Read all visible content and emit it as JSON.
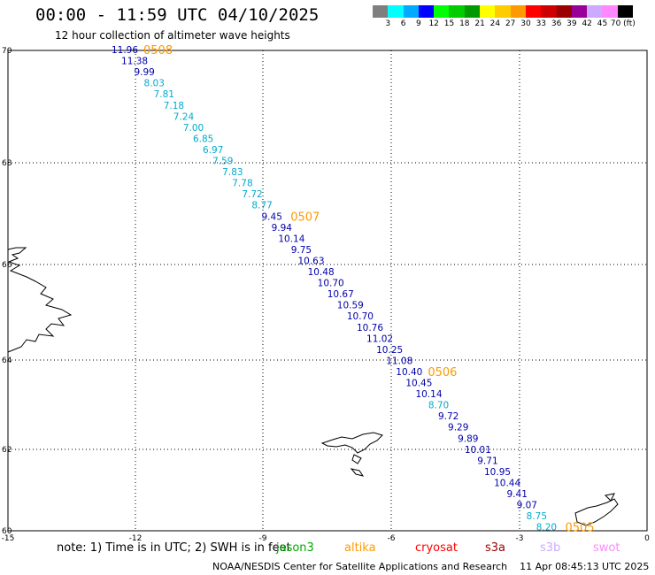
{
  "header": {
    "title": "00:00 - 11:59 UTC 04/10/2025",
    "subtitle": "12 hour collection of altimeter wave heights"
  },
  "legend": {
    "colors": [
      "#7f7f7f",
      "#00ffff",
      "#00aaff",
      "#0000ff",
      "#00ff00",
      "#00cc00",
      "#009900",
      "#ffff00",
      "#ffcc00",
      "#ff9900",
      "#ff0000",
      "#cc0000",
      "#990000",
      "#990099",
      "#ccaaff",
      "#ff88ff",
      "#000000"
    ],
    "labels": [
      "3",
      "6",
      "9",
      "12",
      "15",
      "18",
      "21",
      "24",
      "27",
      "30",
      "33",
      "36",
      "39",
      "42",
      "45",
      "70 (ft)"
    ]
  },
  "axes": {
    "x_ticks": [
      "-15",
      "-12",
      "-9",
      "-6",
      "-3",
      "0"
    ],
    "y_ticks": [
      "70",
      "68",
      "66",
      "64",
      "62",
      "60"
    ]
  },
  "track": {
    "points": [
      {
        "v": "11.96",
        "c": "#0000aa"
      },
      {
        "v": "11.38",
        "c": "#0000aa"
      },
      {
        "v": "9.99",
        "c": "#0000aa"
      },
      {
        "v": "8.03",
        "c": "#00aacc"
      },
      {
        "v": "7.81",
        "c": "#00aacc"
      },
      {
        "v": "7.18",
        "c": "#00aacc"
      },
      {
        "v": "7.24",
        "c": "#00aacc"
      },
      {
        "v": "7.00",
        "c": "#00aacc"
      },
      {
        "v": "6.85",
        "c": "#00aacc"
      },
      {
        "v": "6.97",
        "c": "#00aacc"
      },
      {
        "v": "7.59",
        "c": "#00aacc"
      },
      {
        "v": "7.83",
        "c": "#00aacc"
      },
      {
        "v": "7.78",
        "c": "#00aacc"
      },
      {
        "v": "7.72",
        "c": "#00aacc"
      },
      {
        "v": "8.77",
        "c": "#00aacc"
      },
      {
        "v": "9.45",
        "c": "#0000aa"
      },
      {
        "v": "9.94",
        "c": "#0000aa"
      },
      {
        "v": "10.14",
        "c": "#0000aa"
      },
      {
        "v": "9.75",
        "c": "#0000aa"
      },
      {
        "v": "10.63",
        "c": "#0000aa"
      },
      {
        "v": "10.48",
        "c": "#0000aa"
      },
      {
        "v": "10.70",
        "c": "#0000aa"
      },
      {
        "v": "10.67",
        "c": "#0000aa"
      },
      {
        "v": "10.59",
        "c": "#0000aa"
      },
      {
        "v": "10.70",
        "c": "#0000aa"
      },
      {
        "v": "10.76",
        "c": "#0000aa"
      },
      {
        "v": "11.02",
        "c": "#0000aa"
      },
      {
        "v": "10.25",
        "c": "#0000aa"
      },
      {
        "v": "11.08",
        "c": "#0000aa"
      },
      {
        "v": "10.40",
        "c": "#0000aa"
      },
      {
        "v": "10.45",
        "c": "#0000aa"
      },
      {
        "v": "10.14",
        "c": "#0000aa"
      },
      {
        "v": "8.70",
        "c": "#00aacc"
      },
      {
        "v": "9.72",
        "c": "#0000aa"
      },
      {
        "v": "9.29",
        "c": "#0000aa"
      },
      {
        "v": "9.89",
        "c": "#0000aa"
      },
      {
        "v": "10.01",
        "c": "#0000aa"
      },
      {
        "v": "9.71",
        "c": "#0000aa"
      },
      {
        "v": "10.95",
        "c": "#0000aa"
      },
      {
        "v": "10.44",
        "c": "#0000aa"
      },
      {
        "v": "9.41",
        "c": "#0000aa"
      },
      {
        "v": "9.07",
        "c": "#0000aa"
      },
      {
        "v": "8.75",
        "c": "#00aacc"
      },
      {
        "v": "8.20",
        "c": "#00aacc"
      }
    ],
    "orbits": [
      "0508",
      "0507",
      "0506",
      "0505"
    ],
    "orbit_color": "#ff9900"
  },
  "note": "note:  1) Time is in UTC; 2) SWH is in feet",
  "satellites": [
    {
      "name": "jason3",
      "color": "#00aa00"
    },
    {
      "name": "altika",
      "color": "#ff9900"
    },
    {
      "name": "cryosat",
      "color": "#ff0000"
    },
    {
      "name": "s3a",
      "color": "#990000"
    },
    {
      "name": "s3b",
      "color": "#ccaaff"
    },
    {
      "name": "swot",
      "color": "#ff88ff"
    }
  ],
  "footer": {
    "agency": "NOAA/NESDIS Center for Satellite Applications and Research",
    "timestamp": "11 Apr 08:45:13 UTC 2025"
  }
}
